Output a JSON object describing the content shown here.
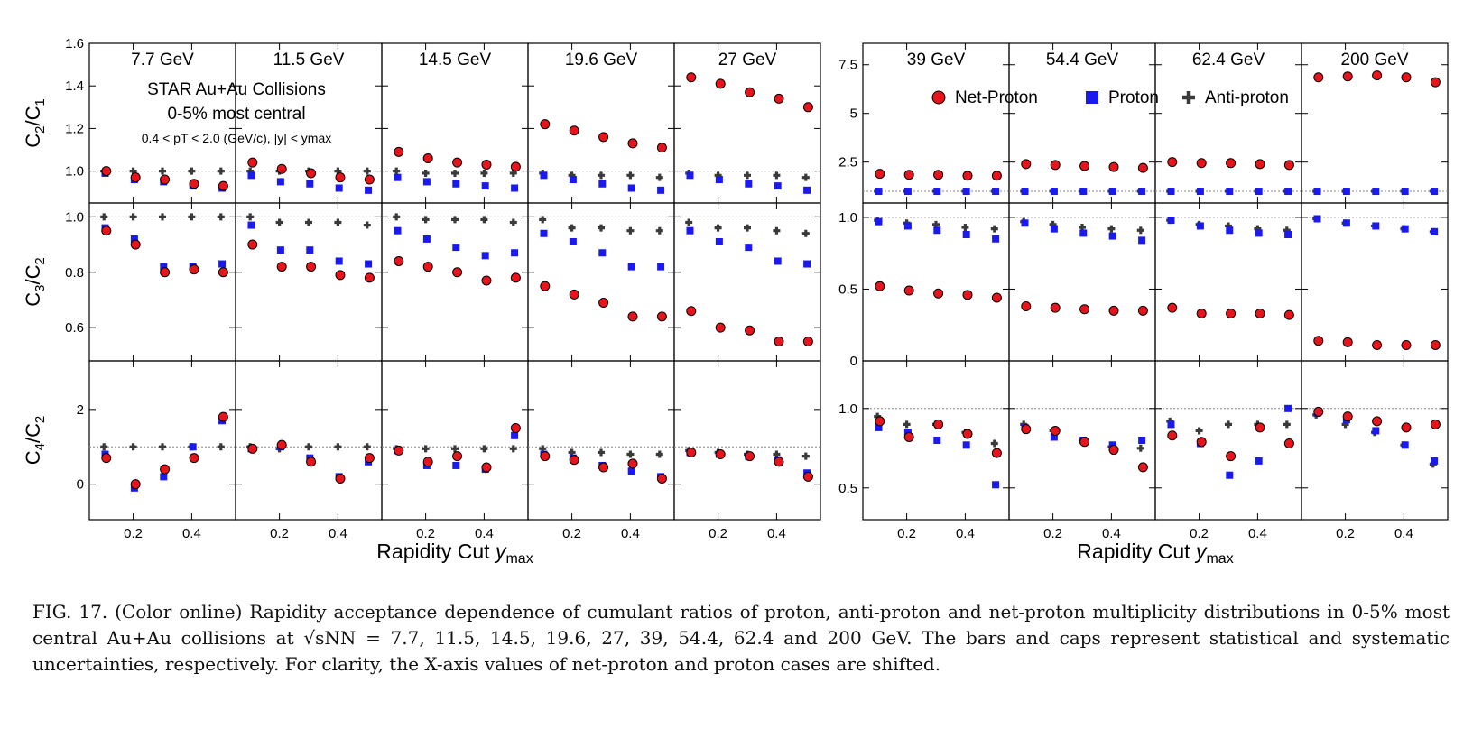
{
  "chart_data": {
    "type": "scatter",
    "xlabel": "Rapidity Cut y_max",
    "x": [
      0.1,
      0.2,
      0.3,
      0.4,
      0.5
    ],
    "xticks": [
      0.2,
      0.4
    ],
    "reference_value": 1,
    "energies": [
      "7.7 GeV",
      "11.5 GeV",
      "14.5 GeV",
      "19.6 GeV",
      "27 GeV",
      "39 GeV",
      "54.4 GeV",
      "62.4 GeV",
      "200 GeV"
    ],
    "annotation": {
      "line1": "STAR Au+Au Collisions",
      "line2": "0-5% most central",
      "line3": "0.4 < pT < 2.0 (GeV/c), |y| < ymax"
    },
    "legend": {
      "position": "top",
      "entries": [
        "Net-Proton",
        "Proton",
        "Anti-proton"
      ]
    },
    "colors": {
      "net_proton": "#e8141c",
      "proton": "#1a1aee",
      "anti_proton": "#3a3a3a"
    },
    "groups": [
      {
        "name": "left",
        "rows": [
          {
            "ylabel": "C2/C1",
            "ylim": [
              0.85,
              1.6
            ],
            "yticks": [
              1.0,
              1.2,
              1.4,
              1.6
            ]
          },
          {
            "ylabel": "C3/C2",
            "ylim": [
              0.48,
              1.05
            ],
            "yticks": [
              0.6,
              0.8,
              1.0
            ]
          },
          {
            "ylabel": "C4/C2",
            "ylim": [
              -0.95,
              3.3
            ],
            "yticks": [
              0,
              2
            ]
          }
        ]
      },
      {
        "name": "right",
        "rows": [
          {
            "ylabel": "",
            "ylim": [
              0.4,
              8.6
            ],
            "yticks": [
              2.5,
              5.0,
              7.5
            ]
          },
          {
            "ylabel": "",
            "ylim": [
              0.0,
              1.1
            ],
            "yticks": [
              0.0,
              0.5,
              1.0
            ]
          },
          {
            "ylabel": "",
            "ylim": [
              0.3,
              1.3
            ],
            "yticks": [
              0.5,
              1.0
            ]
          }
        ]
      }
    ],
    "panels": [
      {
        "energy": "7.7 GeV",
        "c2c1": {
          "net_proton": [
            1.0,
            0.97,
            0.96,
            0.94,
            0.93
          ],
          "proton": [
            0.99,
            0.96,
            0.95,
            0.93,
            0.92
          ],
          "anti_proton": [
            1.0,
            1.0,
            1.0,
            1.0,
            1.0
          ]
        },
        "c3c2": {
          "net_proton": [
            0.95,
            0.9,
            0.8,
            0.81,
            0.8
          ],
          "proton": [
            0.96,
            0.92,
            0.82,
            0.82,
            0.83
          ],
          "anti_proton": [
            1.0,
            1.0,
            1.0,
            1.0,
            1.0
          ]
        },
        "c4c2": {
          "net_proton": [
            0.7,
            0.0,
            0.4,
            0.7,
            1.8
          ],
          "proton": [
            0.8,
            -0.1,
            0.2,
            1.0,
            1.7
          ],
          "anti_proton": [
            1.0,
            1.0,
            1.0,
            1.0,
            1.0
          ]
        }
      },
      {
        "energy": "11.5 GeV",
        "c2c1": {
          "net_proton": [
            1.04,
            1.01,
            0.99,
            0.97,
            0.96
          ],
          "proton": [
            0.98,
            0.95,
            0.94,
            0.92,
            0.91
          ],
          "anti_proton": [
            1.0,
            1.0,
            1.0,
            1.0,
            1.0
          ]
        },
        "c3c2": {
          "net_proton": [
            0.9,
            0.82,
            0.82,
            0.79,
            0.78
          ],
          "proton": [
            0.97,
            0.88,
            0.88,
            0.84,
            0.83
          ],
          "anti_proton": [
            1.0,
            0.98,
            0.98,
            0.98,
            0.97
          ]
        },
        "c4c2": {
          "net_proton": [
            0.95,
            1.05,
            0.6,
            0.15,
            0.7
          ],
          "proton": [
            0.95,
            1.0,
            0.7,
            0.2,
            0.6
          ],
          "anti_proton": [
            1.0,
            0.95,
            1.0,
            1.0,
            1.0
          ]
        }
      },
      {
        "energy": "14.5 GeV",
        "c2c1": {
          "net_proton": [
            1.09,
            1.06,
            1.04,
            1.03,
            1.02
          ],
          "proton": [
            0.97,
            0.95,
            0.94,
            0.93,
            0.92
          ],
          "anti_proton": [
            1.0,
            0.99,
            0.99,
            0.99,
            0.99
          ]
        },
        "c3c2": {
          "net_proton": [
            0.84,
            0.82,
            0.8,
            0.77,
            0.78
          ],
          "proton": [
            0.95,
            0.92,
            0.89,
            0.86,
            0.87
          ],
          "anti_proton": [
            1.0,
            0.99,
            0.99,
            0.99,
            0.98
          ]
        },
        "c4c2": {
          "net_proton": [
            0.9,
            0.6,
            0.75,
            0.45,
            1.5
          ],
          "proton": [
            0.9,
            0.5,
            0.5,
            0.4,
            1.3
          ],
          "anti_proton": [
            0.95,
            0.95,
            0.95,
            0.95,
            0.95
          ]
        }
      },
      {
        "energy": "19.6 GeV",
        "c2c1": {
          "net_proton": [
            1.22,
            1.19,
            1.16,
            1.13,
            1.11
          ],
          "proton": [
            0.98,
            0.96,
            0.94,
            0.92,
            0.91
          ],
          "anti_proton": [
            0.99,
            0.98,
            0.98,
            0.98,
            0.97
          ]
        },
        "c3c2": {
          "net_proton": [
            0.75,
            0.72,
            0.69,
            0.64,
            0.64
          ],
          "proton": [
            0.94,
            0.91,
            0.87,
            0.82,
            0.82
          ],
          "anti_proton": [
            0.99,
            0.96,
            0.96,
            0.95,
            0.95
          ]
        },
        "c4c2": {
          "net_proton": [
            0.75,
            0.65,
            0.45,
            0.55,
            0.15
          ],
          "proton": [
            0.8,
            0.7,
            0.5,
            0.35,
            0.2
          ],
          "anti_proton": [
            0.95,
            0.85,
            0.85,
            0.8,
            0.8
          ]
        }
      },
      {
        "energy": "27 GeV",
        "c2c1": {
          "net_proton": [
            1.44,
            1.41,
            1.37,
            1.34,
            1.3
          ],
          "proton": [
            0.98,
            0.96,
            0.94,
            0.93,
            0.91
          ],
          "anti_proton": [
            0.99,
            0.98,
            0.98,
            0.98,
            0.97
          ]
        },
        "c3c2": {
          "net_proton": [
            0.66,
            0.6,
            0.59,
            0.55,
            0.55
          ],
          "proton": [
            0.95,
            0.91,
            0.89,
            0.84,
            0.83
          ],
          "anti_proton": [
            0.98,
            0.96,
            0.96,
            0.95,
            0.94
          ]
        },
        "c4c2": {
          "net_proton": [
            0.85,
            0.8,
            0.75,
            0.6,
            0.2
          ],
          "proton": [
            0.85,
            0.8,
            0.75,
            0.65,
            0.3
          ],
          "anti_proton": [
            0.9,
            0.85,
            0.8,
            0.8,
            0.75
          ]
        }
      },
      {
        "energy": "39 GeV",
        "c2c1": {
          "net_proton": [
            1.9,
            1.85,
            1.85,
            1.8,
            1.8
          ],
          "proton": [
            1.0,
            1.0,
            1.0,
            1.0,
            1.0
          ],
          "anti_proton": [
            1.0,
            1.0,
            1.0,
            1.0,
            1.0
          ]
        },
        "c3c2": {
          "net_proton": [
            0.52,
            0.49,
            0.47,
            0.46,
            0.44
          ],
          "proton": [
            0.97,
            0.94,
            0.91,
            0.88,
            0.85
          ],
          "anti_proton": [
            0.98,
            0.96,
            0.95,
            0.93,
            0.92
          ]
        },
        "c4c2": {
          "net_proton": [
            0.92,
            0.82,
            0.9,
            0.84,
            0.72
          ],
          "proton": [
            0.88,
            0.85,
            0.8,
            0.77,
            0.52
          ],
          "anti_proton": [
            0.95,
            0.9,
            0.9,
            0.85,
            0.78
          ]
        }
      },
      {
        "energy": "54.4 GeV",
        "c2c1": {
          "net_proton": [
            2.4,
            2.35,
            2.3,
            2.25,
            2.2
          ],
          "proton": [
            1.0,
            1.0,
            1.0,
            1.0,
            1.0
          ],
          "anti_proton": [
            1.0,
            1.0,
            1.0,
            1.0,
            1.0
          ]
        },
        "c3c2": {
          "net_proton": [
            0.38,
            0.37,
            0.36,
            0.35,
            0.35
          ],
          "proton": [
            0.96,
            0.92,
            0.89,
            0.87,
            0.84
          ],
          "anti_proton": [
            0.97,
            0.95,
            0.93,
            0.92,
            0.91
          ]
        },
        "c4c2": {
          "net_proton": [
            0.87,
            0.86,
            0.79,
            0.74,
            0.63
          ],
          "proton": [
            0.88,
            0.82,
            0.8,
            0.77,
            0.8
          ],
          "anti_proton": [
            0.9,
            0.86,
            0.8,
            0.76,
            0.75
          ]
        }
      },
      {
        "energy": "62.4 GeV",
        "c2c1": {
          "net_proton": [
            2.5,
            2.45,
            2.45,
            2.4,
            2.35
          ],
          "proton": [
            1.0,
            1.0,
            1.0,
            1.0,
            1.0
          ],
          "anti_proton": [
            1.0,
            1.0,
            1.0,
            1.0,
            1.0
          ]
        },
        "c3c2": {
          "net_proton": [
            0.37,
            0.33,
            0.33,
            0.33,
            0.32
          ],
          "proton": [
            0.98,
            0.94,
            0.91,
            0.89,
            0.88
          ],
          "anti_proton": [
            0.98,
            0.95,
            0.94,
            0.92,
            0.91
          ]
        },
        "c4c2": {
          "net_proton": [
            0.83,
            0.79,
            0.7,
            0.88,
            0.78
          ],
          "proton": [
            0.9,
            0.78,
            0.58,
            0.67,
            1.0
          ],
          "anti_proton": [
            0.92,
            0.86,
            0.9,
            0.9,
            0.9
          ]
        }
      },
      {
        "energy": "200 GeV",
        "c2c1": {
          "net_proton": [
            6.85,
            6.9,
            6.95,
            6.85,
            6.6
          ],
          "proton": [
            1.0,
            1.0,
            1.0,
            1.0,
            1.0
          ],
          "anti_proton": [
            1.0,
            1.0,
            1.0,
            1.0,
            1.0
          ]
        },
        "c3c2": {
          "net_proton": [
            0.14,
            0.13,
            0.11,
            0.11,
            0.11
          ],
          "proton": [
            0.99,
            0.96,
            0.94,
            0.92,
            0.9
          ],
          "anti_proton": [
            0.99,
            0.96,
            0.94,
            0.92,
            0.9
          ]
        },
        "c4c2": {
          "net_proton": [
            0.98,
            0.95,
            0.92,
            0.88,
            0.9
          ],
          "proton": [
            0.97,
            0.93,
            0.86,
            0.77,
            0.67
          ],
          "anti_proton": [
            0.96,
            0.9,
            0.85,
            0.77,
            0.65
          ]
        }
      }
    ]
  },
  "caption": "FIG. 17. (Color online) Rapidity acceptance dependence of cumulant ratios of proton, anti-proton and net-proton multiplicity distributions in 0-5% most central Au+Au collisions at √sNN = 7.7, 11.5, 14.5, 19.6, 27, 39, 54.4, 62.4 and 200 GeV. The bars and caps represent statistical and systematic uncertainties, respectively. For clarity, the X-axis values of net-proton and proton cases are shifted."
}
